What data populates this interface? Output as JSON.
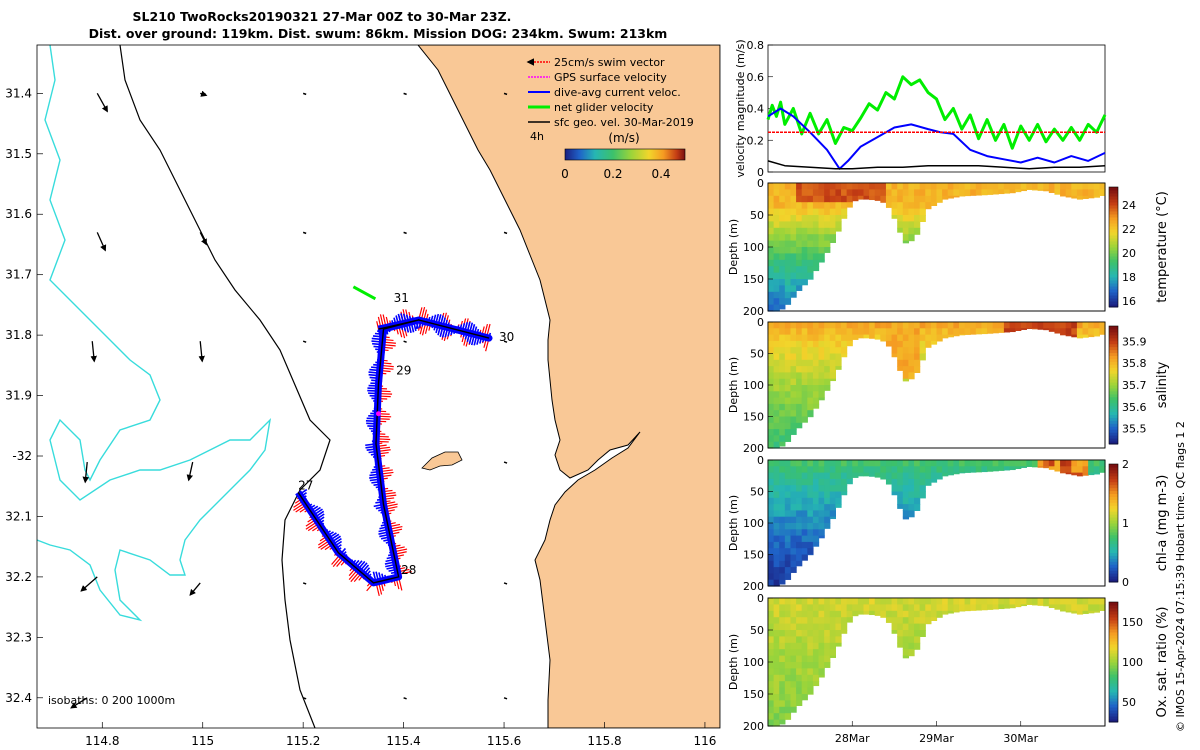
{
  "title": {
    "line1": "SL210 TwoRocks20190321 27-Mar 00Z to 30-Mar 23Z.",
    "line2": "Dist. over ground: 119km. Dist. swum: 86km. Mission DOG: 234km. Swum: 213km"
  },
  "credit": "© IMOS 15-Apr-2024 07:15:39 Hobart time. QC flags 1  2",
  "colors": {
    "land": "#f9c896",
    "coast": "#000000",
    "isobath": "#38dcdc",
    "swim": "#ff0000",
    "gps": "#ff00ff",
    "current": "#0000ff",
    "net": "#00ee00",
    "geo": "#000000"
  },
  "chart_data": [
    {
      "type": "scatter",
      "name": "map",
      "xlim": [
        114.67,
        116.03
      ],
      "ylim": [
        -32.45,
        -31.32
      ],
      "xticks": [
        114.8,
        115,
        115.2,
        115.4,
        115.6,
        115.8,
        116
      ],
      "xtick_labels": [
        "114.8",
        "115",
        "115.2",
        "115.4",
        "115.6",
        "115.8",
        "116"
      ],
      "yticks": [
        -31.4,
        -31.5,
        -31.6,
        -31.7,
        -31.8,
        -31.9,
        -32,
        -32.1,
        -32.2,
        -32.3,
        -32.4
      ],
      "ytick_labels": [
        "31.4",
        "31.5",
        "31.6",
        "31.7",
        "31.8",
        "31.9",
        "-32",
        "32.1",
        "32.2",
        "32.3",
        "32.4"
      ],
      "legend": [
        {
          "label": "25cm/s swim vector",
          "color": "#ff0000"
        },
        {
          "label": "GPS surface velocity",
          "color": "#ff00ff"
        },
        {
          "label": "dive-avg current veloc.",
          "color": "#0000ff"
        },
        {
          "label": "net glider velocity",
          "color": "#00ee00"
        },
        {
          "label": "sfc geo. vel. 30-Mar-2019",
          "color": "#000000"
        }
      ],
      "legend_extra": "4h",
      "colorbar": {
        "title": "(m/s)",
        "range": [
          0,
          0.5
        ],
        "ticks": [
          0,
          0.2,
          0.4
        ],
        "tick_labels": [
          "0",
          "0.2",
          "0.4"
        ]
      },
      "isobath_label": "isobaths: 0   200  1000m",
      "track": [
        [
          115.35,
          -31.79
        ],
        [
          115.43,
          -31.775
        ],
        [
          115.57,
          -31.805
        ],
        [
          115.43,
          -31.775
        ],
        [
          115.36,
          -31.79
        ],
        [
          115.35,
          -31.88
        ],
        [
          115.345,
          -31.98
        ],
        [
          115.36,
          -32.08
        ],
        [
          115.39,
          -32.2
        ],
        [
          115.34,
          -32.21
        ],
        [
          115.27,
          -32.16
        ],
        [
          115.19,
          -32.06
        ]
      ],
      "day_labels": [
        {
          "text": "31",
          "lon": 115.38,
          "lat": -31.745
        },
        {
          "text": "30",
          "lon": 115.59,
          "lat": -31.81
        },
        {
          "text": "29",
          "lon": 115.385,
          "lat": -31.865
        },
        {
          "text": "27",
          "lon": 115.19,
          "lat": -32.055
        },
        {
          "text": "28",
          "lon": 115.395,
          "lat": -32.195
        }
      ],
      "geo_vectors": [
        {
          "lon": 114.79,
          "lat": -31.4,
          "u": 0.5,
          "v": -0.9
        },
        {
          "lon": 114.79,
          "lat": -31.63,
          "u": 0.4,
          "v": -0.9
        },
        {
          "lon": 114.78,
          "lat": -31.81,
          "u": 0.1,
          "v": -1.0
        },
        {
          "lon": 114.77,
          "lat": -32.01,
          "u": -0.1,
          "v": -1.0
        },
        {
          "lon": 114.79,
          "lat": -32.2,
          "u": -0.8,
          "v": -0.7
        },
        {
          "lon": 114.77,
          "lat": -32.4,
          "u": -0.8,
          "v": -0.5
        },
        {
          "lon": 114.995,
          "lat": -31.4,
          "u": 0.3,
          "v": -0.1
        },
        {
          "lon": 114.995,
          "lat": -31.63,
          "u": 0.3,
          "v": -0.6
        },
        {
          "lon": 114.995,
          "lat": -31.81,
          "u": 0.1,
          "v": -1.0
        },
        {
          "lon": 114.98,
          "lat": -32.01,
          "u": -0.2,
          "v": -0.9
        },
        {
          "lon": 114.995,
          "lat": -32.21,
          "u": -0.5,
          "v": -0.6
        }
      ]
    },
    {
      "type": "line",
      "name": "velocity",
      "ylabel": "velocity magnitude (m/s)",
      "ylim": [
        0,
        0.8
      ],
      "yticks": [
        0,
        0.2,
        0.4,
        0.6,
        0.8
      ],
      "xlim": [
        27.0,
        31.0
      ],
      "series": [
        {
          "name": "net glider velocity",
          "color": "#00ee00",
          "x": [
            27.0,
            27.05,
            27.1,
            27.15,
            27.2,
            27.3,
            27.4,
            27.5,
            27.6,
            27.7,
            27.8,
            27.9,
            28.0,
            28.1,
            28.2,
            28.3,
            28.4,
            28.5,
            28.6,
            28.7,
            28.8,
            28.9,
            29.0,
            29.1,
            29.2,
            29.3,
            29.4,
            29.5,
            29.6,
            29.7,
            29.8,
            29.9,
            30.0,
            30.1,
            30.2,
            30.3,
            30.4,
            30.5,
            30.6,
            30.7,
            30.8,
            30.9,
            31.0
          ],
          "y": [
            0.33,
            0.42,
            0.35,
            0.44,
            0.3,
            0.4,
            0.24,
            0.37,
            0.24,
            0.33,
            0.18,
            0.28,
            0.26,
            0.34,
            0.43,
            0.39,
            0.5,
            0.46,
            0.6,
            0.55,
            0.58,
            0.5,
            0.46,
            0.33,
            0.4,
            0.27,
            0.36,
            0.21,
            0.33,
            0.2,
            0.3,
            0.15,
            0.29,
            0.2,
            0.3,
            0.19,
            0.27,
            0.2,
            0.28,
            0.2,
            0.3,
            0.25,
            0.36
          ]
        },
        {
          "name": "dive-avg current veloc.",
          "color": "#0000ff",
          "x": [
            27.0,
            27.15,
            27.3,
            27.5,
            27.7,
            27.85,
            27.95,
            28.1,
            28.3,
            28.5,
            28.7,
            28.9,
            29.05,
            29.2,
            29.4,
            29.6,
            29.8,
            30.0,
            30.2,
            30.4,
            30.6,
            30.8,
            31.0
          ],
          "y": [
            0.35,
            0.4,
            0.35,
            0.25,
            0.14,
            0.02,
            0.07,
            0.16,
            0.22,
            0.28,
            0.3,
            0.27,
            0.25,
            0.24,
            0.14,
            0.1,
            0.08,
            0.06,
            0.09,
            0.06,
            0.1,
            0.07,
            0.12
          ]
        },
        {
          "name": "25cm/s swim vector",
          "color": "#ff0000",
          "x": [
            27.0,
            31.0
          ],
          "y": [
            0.25,
            0.25
          ]
        },
        {
          "name": "sfc geo. vel.",
          "color": "#000000",
          "x": [
            27.0,
            27.2,
            27.5,
            27.8,
            28.0,
            28.3,
            28.6,
            28.9,
            29.2,
            29.5,
            29.8,
            30.1,
            30.4,
            30.7,
            31.0
          ],
          "y": [
            0.07,
            0.04,
            0.03,
            0.02,
            0.02,
            0.03,
            0.03,
            0.04,
            0.04,
            0.04,
            0.03,
            0.02,
            0.03,
            0.03,
            0.04
          ]
        }
      ]
    },
    {
      "type": "heatmap",
      "name": "temperature",
      "ylabel": "Depth (m)",
      "cblabel": "temperature (°C)",
      "ylim": [
        0,
        200
      ],
      "yticks": [
        0,
        50,
        100,
        150,
        200
      ],
      "crange": [
        15.5,
        25.5
      ],
      "cticks": [
        16,
        18,
        20,
        22,
        24
      ],
      "colormap": [
        "#1b1f80",
        "#1f62c8",
        "#26b6b3",
        "#3cc16b",
        "#9bd43a",
        "#f2d52b",
        "#f59b22",
        "#c43d14",
        "#7a1010"
      ],
      "surface": 24,
      "bottom_value": 16.5
    },
    {
      "type": "heatmap",
      "name": "salinity",
      "ylabel": "Depth (m)",
      "cblabel": "salinity",
      "ylim": [
        0,
        200
      ],
      "yticks": [
        0,
        50,
        100,
        150,
        200
      ],
      "crange": [
        35.43,
        35.97
      ],
      "cticks": [
        35.5,
        35.6,
        35.7,
        35.8,
        35.9
      ],
      "colormap": [
        "#1b1f80",
        "#1f62c8",
        "#26b6b3",
        "#3cc16b",
        "#9bd43a",
        "#f2d52b",
        "#f59b22",
        "#c43d14",
        "#7a1010"
      ],
      "surface": 35.82,
      "bottom_value": 35.62
    },
    {
      "type": "heatmap",
      "name": "chl-a",
      "ylabel": "Depth (m)",
      "cblabel": "chl-a (mg m-3)",
      "ylim": [
        0,
        200
      ],
      "yticks": [
        0,
        50,
        100,
        150,
        200
      ],
      "crange": [
        0,
        2
      ],
      "cticks": [
        0,
        1,
        2
      ],
      "colormap": [
        "#1b1f80",
        "#1f62c8",
        "#26b6b3",
        "#3cc16b",
        "#9bd43a",
        "#f2d52b",
        "#f59b22",
        "#c43d14",
        "#7a1010"
      ],
      "surface": 0.75,
      "bottom_value": 0.05
    },
    {
      "type": "heatmap",
      "name": "oxygen",
      "ylabel": "Depth (m)",
      "cblabel": "Ox. sat. ratio (%)",
      "ylim": [
        0,
        200
      ],
      "yticks": [
        0,
        50,
        100,
        150,
        200
      ],
      "crange": [
        25,
        175
      ],
      "cticks": [
        50,
        100,
        150
      ],
      "colormap": [
        "#1b1f80",
        "#1f62c8",
        "#26b6b3",
        "#3cc16b",
        "#9bd43a",
        "#f2d52b",
        "#f59b22",
        "#c43d14",
        "#7a1010"
      ],
      "surface": 112,
      "bottom_value": 95
    }
  ],
  "time_axis": {
    "ticks": [
      28.0,
      29.0,
      30.0
    ],
    "labels": [
      "28Mar",
      "29Mar",
      "30Mar"
    ],
    "xlim": [
      27.0,
      31.0
    ]
  },
  "bathymetry": {
    "x": [
      27.0,
      27.1,
      27.2,
      27.35,
      27.5,
      27.65,
      27.8,
      27.95,
      28.05,
      28.2,
      28.35,
      28.45,
      28.55,
      28.6,
      28.65,
      28.75,
      28.9,
      29.1,
      29.3,
      29.6,
      29.9,
      30.1,
      30.3,
      30.5,
      30.7,
      30.9,
      31.0
    ],
    "depth": [
      200,
      200,
      195,
      170,
      150,
      120,
      85,
      40,
      25,
      25,
      28,
      40,
      70,
      90,
      95,
      85,
      40,
      25,
      20,
      18,
      15,
      10,
      12,
      20,
      25,
      22,
      18
    ]
  }
}
